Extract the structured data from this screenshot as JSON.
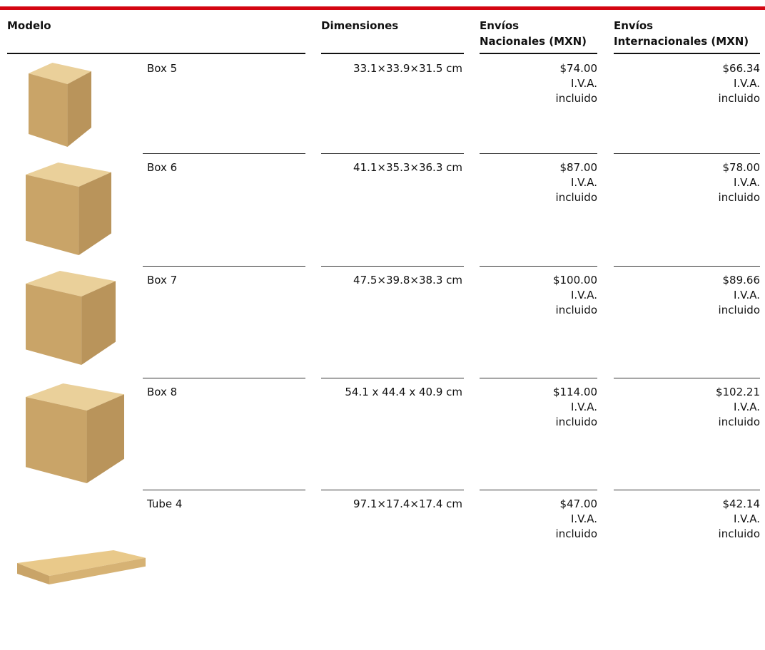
{
  "header": {
    "columns": [
      "Modelo",
      "Dimensiones",
      "Envíos\nNacionales (MXN)",
      "Envíos\nInternacionales (MXN)"
    ]
  },
  "table": {
    "rows": [
      [
        "Box 5",
        "33.1×33.9×31.5 cm",
        "$74.00 I.V.A. incluido",
        "$66.34 I.V.A. incluido"
      ],
      [
        "Box 6",
        "41.1×35.3×36.3 cm",
        "$87.00 I.V.A. incluido",
        "$78.00 I.V.A. incluido"
      ],
      [
        "Box 7",
        "47.5×39.8×38.3 cm",
        "$100.00 I.V.A. incluido",
        "$89.66 I.V.A. incluido"
      ],
      [
        "Box 8",
        "54.1 x 44.4 x 40.9 cm",
        "$114.00 I.V.A. incluido",
        "$102.21 I.V.A. incluido"
      ],
      [
        "Tube 4",
        "97.1×17.4×17.4 cm",
        "$47.00 I.V.A. incluido",
        "$42.14 I.V.A. incluido"
      ]
    ]
  }
}
